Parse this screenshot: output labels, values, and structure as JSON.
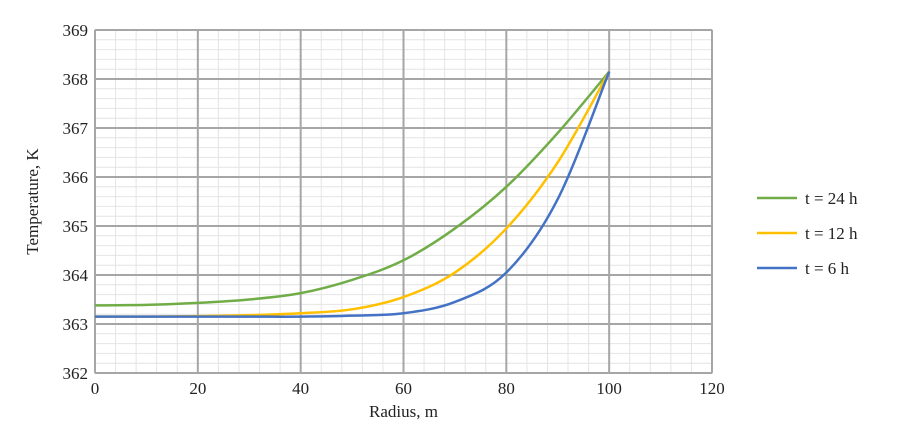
{
  "chart_data": {
    "type": "line",
    "title": "",
    "xlabel": "Radius, m",
    "ylabel": "Temperature, K",
    "xlim": [
      0,
      120
    ],
    "ylim": [
      362,
      369
    ],
    "xticks": [
      0,
      20,
      40,
      60,
      80,
      100,
      120
    ],
    "yticks": [
      362,
      363,
      364,
      365,
      366,
      367,
      368,
      369
    ],
    "grid": true,
    "legend_position": "right",
    "x": [
      0,
      10,
      20,
      30,
      40,
      50,
      60,
      70,
      80,
      90,
      100
    ],
    "series": [
      {
        "name": "t = 24 h",
        "color": "#70ad47",
        "values": [
          363.38,
          363.39,
          363.43,
          363.5,
          363.63,
          363.9,
          364.3,
          364.95,
          365.8,
          366.9,
          368.15
        ]
      },
      {
        "name": "t = 12 h",
        "color": "#ffc000",
        "values": [
          363.15,
          363.15,
          363.16,
          363.18,
          363.22,
          363.3,
          363.55,
          364.05,
          364.95,
          366.3,
          368.15
        ]
      },
      {
        "name": "t = 6 h",
        "color": "#4472c4",
        "values": [
          363.15,
          363.15,
          363.15,
          363.15,
          363.15,
          363.17,
          363.22,
          363.45,
          364.05,
          365.55,
          368.15
        ]
      }
    ]
  }
}
